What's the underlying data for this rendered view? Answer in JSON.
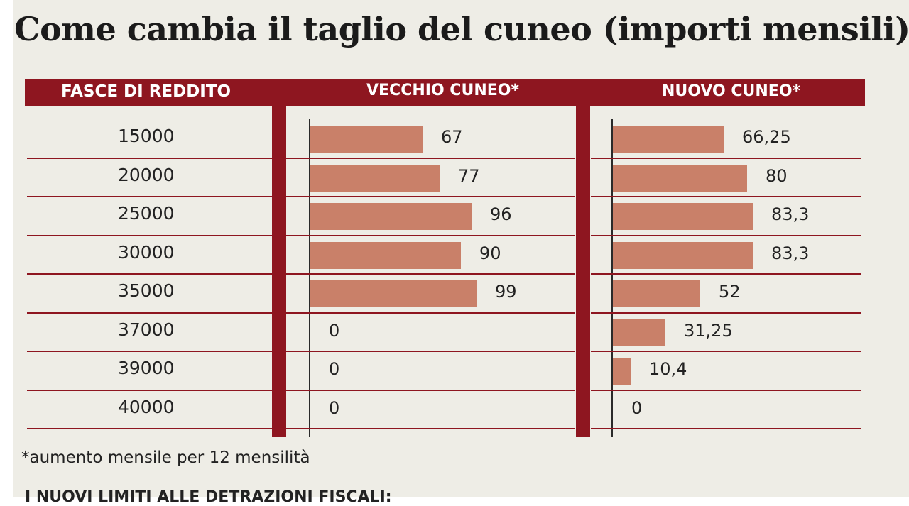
{
  "title": "Come cambia il taglio del cuneo (importi mensili)",
  "colors": {
    "accent": "#8e1620",
    "bar": "#c98069",
    "background": "#eeede6"
  },
  "chart_data": {
    "type": "bar",
    "orientation": "horizontal",
    "title": "Come cambia il taglio del cuneo (importi mensili)",
    "headers": {
      "categories": "FASCE DI REDDITO",
      "old": "VECCHIO CUNEO*",
      "new": "NUOVO CUNEO*"
    },
    "categories": [
      "15000",
      "20000",
      "25000",
      "30000",
      "35000",
      "37000",
      "39000",
      "40000"
    ],
    "series": [
      {
        "name": "VECCHIO CUNEO*",
        "values": [
          67,
          77,
          96,
          90,
          99,
          0,
          0,
          0
        ],
        "labels": [
          "67",
          "77",
          "96",
          "90",
          "99",
          "0",
          "0",
          "0"
        ]
      },
      {
        "name": "NUOVO CUNEO*",
        "values": [
          66.25,
          80,
          83.3,
          83.3,
          52,
          31.25,
          10.4,
          0
        ],
        "labels": [
          "66,25",
          "80",
          "83,3",
          "83,3",
          "52",
          "31,25",
          "10,4",
          "0"
        ]
      }
    ],
    "footnote": "*aumento mensile per 12 mensilità",
    "grid": false,
    "legend": "none"
  },
  "footer_cut": "I NUOVI LIMITI ALLE DETRAZIONI FISCALI:"
}
